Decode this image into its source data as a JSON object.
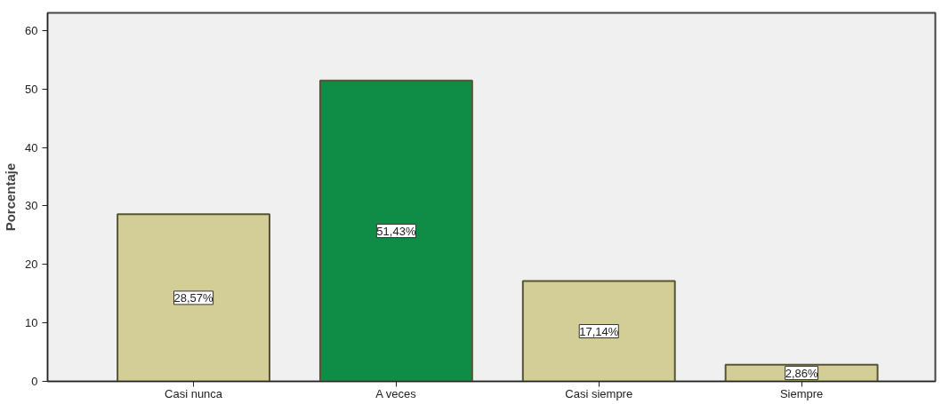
{
  "chart_data": {
    "type": "bar",
    "ylabel": "Porcentaje",
    "categories": [
      "Casi nunca",
      "A veces",
      "Casi siempre",
      "Siempre"
    ],
    "values": [
      28.57,
      51.43,
      17.14,
      2.86
    ],
    "colors": [
      "#d3ce97",
      "#0f8c46",
      "#d3ce97",
      "#d3ce97"
    ],
    "value_labels": [
      "28,57%",
      "51,43%",
      "17,14%",
      "2,86%"
    ],
    "ylim": [
      0,
      63
    ],
    "yticks": [
      0,
      10,
      20,
      30,
      40,
      50,
      60
    ],
    "grid": false
  }
}
